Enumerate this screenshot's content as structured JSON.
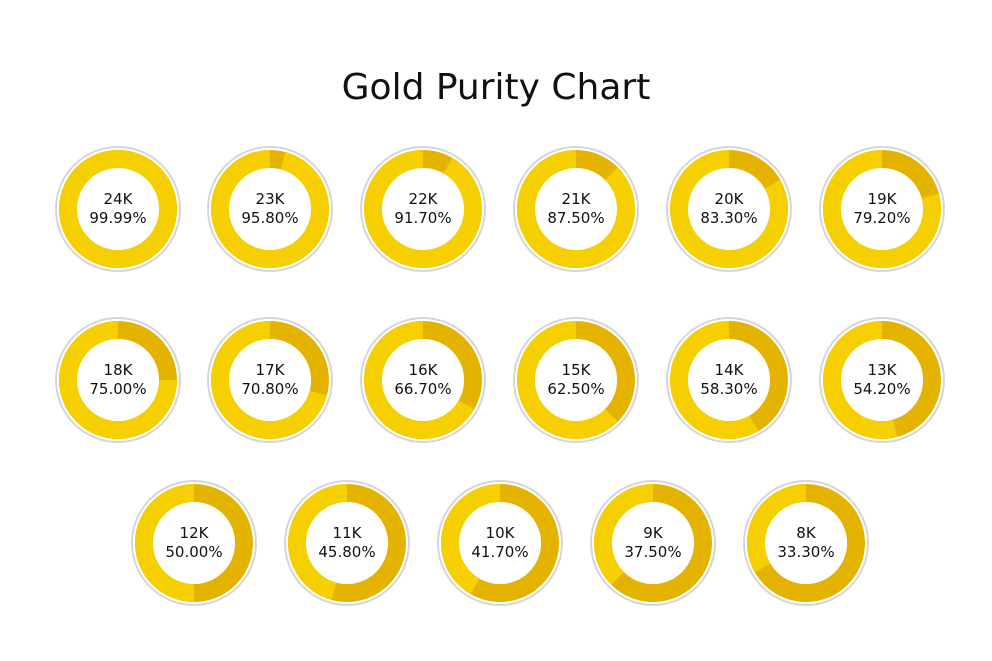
{
  "chart_data": {
    "type": "pie",
    "title": "Gold Purity Chart",
    "colors": {
      "purity": "#f5cf00",
      "remainder": "#e3b300",
      "ring_border": "#d6d6d6",
      "center": "#ffffff"
    },
    "items": [
      {
        "label": "24K",
        "value_text": "99.99%",
        "value": 99.99
      },
      {
        "label": "23K",
        "value_text": "95.80%",
        "value": 95.8
      },
      {
        "label": "22K",
        "value_text": "91.70%",
        "value": 91.7
      },
      {
        "label": "21K",
        "value_text": "87.50%",
        "value": 87.5
      },
      {
        "label": "20K",
        "value_text": "83.30%",
        "value": 83.3
      },
      {
        "label": "19K",
        "value_text": "79.20%",
        "value": 79.2
      },
      {
        "label": "18K",
        "value_text": "75.00%",
        "value": 75.0
      },
      {
        "label": "17K",
        "value_text": "70.80%",
        "value": 70.8
      },
      {
        "label": "16K",
        "value_text": "66.70%",
        "value": 66.7
      },
      {
        "label": "15K",
        "value_text": "62.50%",
        "value": 62.5
      },
      {
        "label": "14K",
        "value_text": "58.30%",
        "value": 58.3
      },
      {
        "label": "13K",
        "value_text": "54.20%",
        "value": 54.2
      },
      {
        "label": "12K",
        "value_text": "50.00%",
        "value": 50.0
      },
      {
        "label": "11K",
        "value_text": "45.80%",
        "value": 45.8
      },
      {
        "label": "10K",
        "value_text": "41.70%",
        "value": 41.7
      },
      {
        "label": "9K",
        "value_text": "37.50%",
        "value": 37.5
      },
      {
        "label": "8K",
        "value_text": "33.30%",
        "value": 33.3
      }
    ]
  }
}
